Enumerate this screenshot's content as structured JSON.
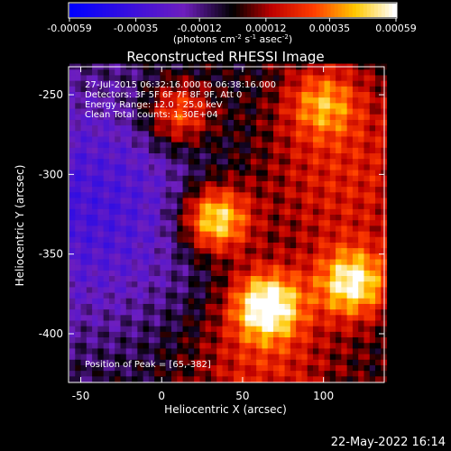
{
  "chart_data": {
    "type": "heatmap",
    "title": "Reconstructed RHESSI Image",
    "xlabel": "Heliocentric X (arcsec)",
    "ylabel": "Heliocentric Y (arcsec)",
    "xlim": [
      -57,
      137
    ],
    "ylim": [
      -430,
      -233
    ],
    "x_ticks": [
      "-50",
      "0",
      "50",
      "100"
    ],
    "y_ticks": [
      "-250",
      "-300",
      "-350",
      "-400"
    ],
    "colorbar": {
      "label_main": "(photons cm",
      "label_sup1": "-2",
      "label_mid": " s",
      "label_sup2": "-1",
      "label_tail": " asec",
      "label_sup3": "-2",
      "label_end": ")",
      "ticks": [
        "-0.00059",
        "-0.00035",
        "-0.00012",
        "0.00012",
        "0.00035",
        "0.00059"
      ],
      "range": [
        -0.00059,
        0.00059
      ]
    },
    "annotations": [
      "27-Jul-2015 06:32:16.000 to 06:38:16.000",
      "Detectors: 3F 5F 6F 7F 8F 9F, Att 0",
      "Energy Range: 12.0 - 25.0 keV",
      "Clean     Total counts: 1.30E+04"
    ],
    "peak_label": "Position of Peak = [65,-382]",
    "peaks": [
      {
        "x": 33,
        "y": -328,
        "value": 0.00059
      },
      {
        "x": 65,
        "y": -382,
        "value": 0.00059
      },
      {
        "x": 118,
        "y": -368,
        "value": 0.00052
      },
      {
        "x": 10,
        "y": -262,
        "value": 0.0004
      },
      {
        "x": 100,
        "y": -255,
        "value": 0.00032
      }
    ]
  },
  "footer": {
    "timestamp": "22-May-2022 16:14"
  }
}
